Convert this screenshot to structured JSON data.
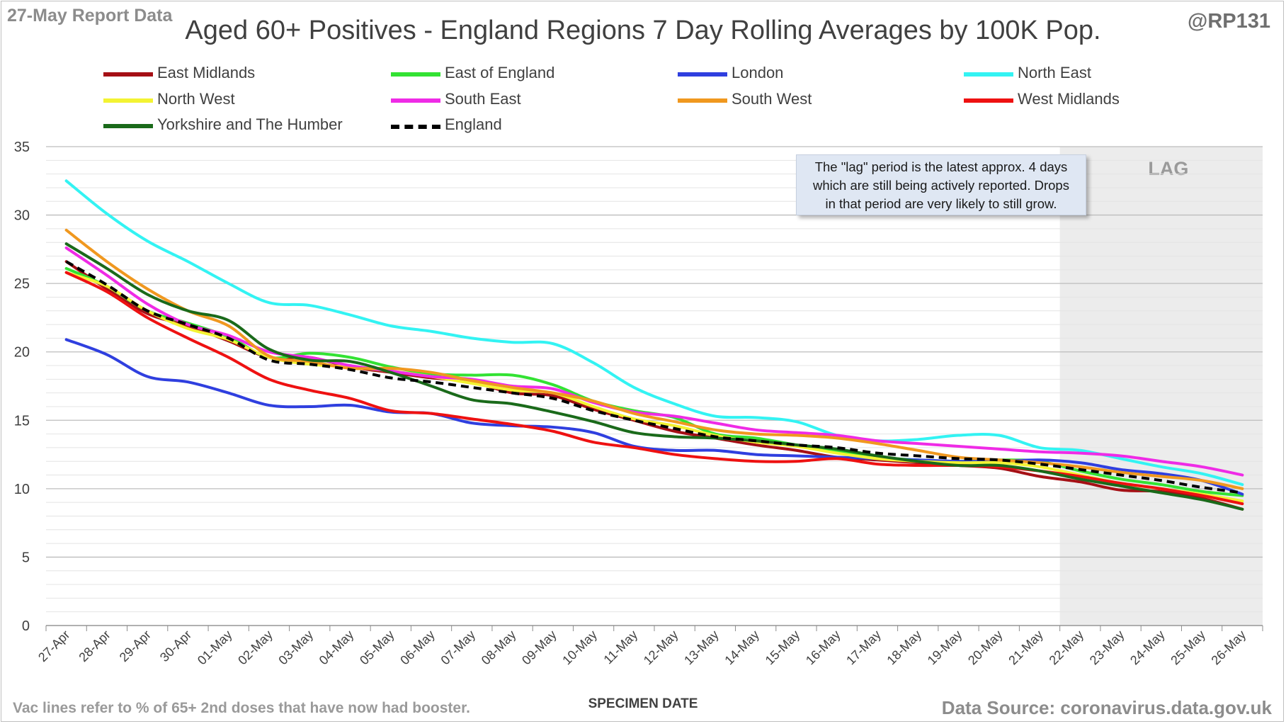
{
  "report_date": "27-May Report Data",
  "handle": "@RP131",
  "footnote": "Vac lines refer to % of 65+ 2nd doses that have now had booster.",
  "source": "Data Source: coronavirus.data.gov.uk",
  "annotation": {
    "line1": "The \"lag\" period is the latest approx. 4 days",
    "line2": "which are still being actively reported.  Drops",
    "line3": "in that period are very likely to still grow."
  },
  "chart_data": {
    "type": "line",
    "title": "Aged 60+ Positives - England Regions 7 Day Rolling Averages by 100K Pop.",
    "xlabel": "SPECIMEN DATE",
    "ylabel": "",
    "ylim": [
      0,
      35
    ],
    "yticks": [
      0,
      5,
      10,
      15,
      20,
      25,
      30,
      35
    ],
    "grid": true,
    "legend_position": "top",
    "lag_label": "LAG",
    "lag_start": "22-May",
    "lag_end": "26-May",
    "categories": [
      "27-Apr",
      "28-Apr",
      "29-Apr",
      "30-Apr",
      "01-May",
      "02-May",
      "03-May",
      "04-May",
      "05-May",
      "06-May",
      "07-May",
      "08-May",
      "09-May",
      "10-May",
      "11-May",
      "12-May",
      "13-May",
      "14-May",
      "15-May",
      "16-May",
      "17-May",
      "18-May",
      "19-May",
      "20-May",
      "21-May",
      "22-May",
      "23-May",
      "24-May",
      "25-May",
      "26-May"
    ],
    "series": [
      {
        "name": "East Midlands",
        "color": "#a50f15",
        "dashed": false,
        "values": [
          26.6,
          24.6,
          22.8,
          21.9,
          20.8,
          19.6,
          19.6,
          18.9,
          18.5,
          18.1,
          17.8,
          17.0,
          16.8,
          15.8,
          15.0,
          14.2,
          13.7,
          13.2,
          12.8,
          12.3,
          12.1,
          11.9,
          11.7,
          11.5,
          10.9,
          10.5,
          9.9,
          9.8,
          9.3,
          8.5
        ]
      },
      {
        "name": "East of England",
        "color": "#33e233",
        "dashed": false,
        "values": [
          26.1,
          24.8,
          23.0,
          22.1,
          21.1,
          19.6,
          19.9,
          19.6,
          18.9,
          18.4,
          18.3,
          18.3,
          17.6,
          16.4,
          15.7,
          15.2,
          14.0,
          13.7,
          13.2,
          12.7,
          12.3,
          12.1,
          12.0,
          12.1,
          12.0,
          11.3,
          10.7,
          10.3,
          9.8,
          9.5
        ]
      },
      {
        "name": "London",
        "color": "#2f3fdf",
        "dashed": false,
        "values": [
          20.9,
          19.8,
          18.2,
          17.8,
          17.0,
          16.1,
          16.0,
          16.1,
          15.6,
          15.5,
          14.8,
          14.6,
          14.5,
          14.1,
          13.1,
          12.8,
          12.8,
          12.5,
          12.4,
          12.3,
          12.2,
          12.1,
          12.0,
          12.0,
          12.1,
          11.9,
          11.4,
          11.1,
          10.6,
          9.6
        ]
      },
      {
        "name": "North East",
        "color": "#33f3f3",
        "dashed": false,
        "values": [
          32.5,
          30.1,
          28.1,
          26.6,
          25.0,
          23.6,
          23.4,
          22.7,
          21.9,
          21.5,
          21.0,
          20.7,
          20.6,
          19.2,
          17.4,
          16.2,
          15.3,
          15.2,
          14.9,
          13.9,
          13.5,
          13.6,
          13.9,
          13.9,
          13.0,
          12.8,
          12.2,
          11.6,
          11.1,
          10.3
        ]
      },
      {
        "name": "North West",
        "color": "#f3f333",
        "dashed": false,
        "values": [
          25.8,
          24.8,
          23.0,
          21.7,
          20.9,
          19.6,
          19.1,
          18.9,
          18.6,
          18.2,
          17.7,
          17.2,
          17.0,
          16.0,
          15.1,
          14.6,
          13.9,
          13.4,
          13.1,
          12.6,
          12.2,
          12.0,
          11.9,
          11.9,
          11.6,
          11.0,
          10.4,
          10.0,
          9.6,
          9.1
        ]
      },
      {
        "name": "South East",
        "color": "#ef2be6",
        "dashed": false,
        "values": [
          27.6,
          25.6,
          23.5,
          22.0,
          21.2,
          20.0,
          19.6,
          19.0,
          18.6,
          18.2,
          18.0,
          17.5,
          17.3,
          16.3,
          15.6,
          15.3,
          14.8,
          14.3,
          14.1,
          13.9,
          13.5,
          13.3,
          13.1,
          12.9,
          12.7,
          12.6,
          12.4,
          12.0,
          11.6,
          11.0
        ]
      },
      {
        "name": "South West",
        "color": "#f0981f",
        "dashed": false,
        "values": [
          28.9,
          26.6,
          24.6,
          23.0,
          21.9,
          19.7,
          19.3,
          18.8,
          18.8,
          18.5,
          17.9,
          17.4,
          17.0,
          16.4,
          15.5,
          14.9,
          14.3,
          14.0,
          13.9,
          13.7,
          13.3,
          12.8,
          12.3,
          12.1,
          11.9,
          11.6,
          11.2,
          10.9,
          10.6,
          10.0
        ]
      },
      {
        "name": "West Midlands",
        "color": "#ee1111",
        "dashed": false,
        "values": [
          25.8,
          24.4,
          22.5,
          21.0,
          19.6,
          18.0,
          17.2,
          16.6,
          15.7,
          15.5,
          15.1,
          14.7,
          14.2,
          13.4,
          13.0,
          12.5,
          12.2,
          12.0,
          12.0,
          12.2,
          11.8,
          11.7,
          11.7,
          11.6,
          11.3,
          10.9,
          10.4,
          10.0,
          9.5,
          8.9
        ]
      },
      {
        "name": "Yorkshire and The Humber",
        "color": "#1a6a1a",
        "dashed": false,
        "values": [
          27.9,
          26.1,
          24.2,
          23.0,
          22.3,
          20.2,
          19.4,
          19.3,
          18.5,
          17.5,
          16.5,
          16.2,
          15.6,
          14.9,
          14.1,
          13.8,
          13.7,
          13.5,
          13.2,
          12.9,
          12.4,
          12.0,
          11.7,
          11.7,
          11.3,
          10.7,
          10.2,
          9.7,
          9.2,
          8.5
        ]
      },
      {
        "name": "England",
        "color": "#000000",
        "dashed": true,
        "values": [
          26.6,
          24.9,
          23.0,
          22.0,
          21.0,
          19.4,
          19.1,
          18.7,
          18.1,
          17.8,
          17.4,
          17.0,
          16.6,
          15.7,
          15.0,
          14.4,
          13.8,
          13.5,
          13.2,
          13.0,
          12.6,
          12.4,
          12.2,
          12.1,
          11.8,
          11.4,
          11.0,
          10.6,
          10.1,
          9.7
        ]
      }
    ]
  }
}
